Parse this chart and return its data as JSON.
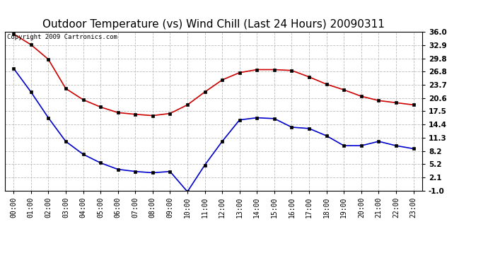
{
  "title": "Outdoor Temperature (vs) Wind Chill (Last 24 Hours) 20090311",
  "copyright_text": "Copyright 2009 Cartronics.com",
  "hours": [
    "00:00",
    "01:00",
    "02:00",
    "03:00",
    "04:00",
    "05:00",
    "06:00",
    "07:00",
    "08:00",
    "09:00",
    "10:00",
    "11:00",
    "12:00",
    "13:00",
    "14:00",
    "15:00",
    "16:00",
    "17:00",
    "18:00",
    "19:00",
    "20:00",
    "21:00",
    "22:00",
    "23:00"
  ],
  "temp": [
    35.5,
    33.0,
    29.6,
    22.8,
    20.2,
    18.5,
    17.2,
    16.8,
    16.5,
    17.0,
    19.0,
    22.0,
    24.8,
    26.5,
    27.2,
    27.2,
    27.0,
    25.5,
    23.8,
    22.5,
    21.0,
    20.0,
    19.5,
    19.0
  ],
  "wind_chill": [
    27.5,
    22.0,
    16.0,
    10.5,
    7.5,
    5.5,
    4.0,
    3.5,
    3.2,
    3.5,
    -1.2,
    5.0,
    10.5,
    15.5,
    16.0,
    15.8,
    13.8,
    13.5,
    11.8,
    9.5,
    9.5,
    10.5,
    9.5,
    8.8
  ],
  "temp_color": "#cc0000",
  "wind_chill_color": "#0000cc",
  "bg_color": "#ffffff",
  "plot_bg_color": "#ffffff",
  "grid_color": "#bbbbbb",
  "yticks": [
    36.0,
    32.9,
    29.8,
    26.8,
    23.7,
    20.6,
    17.5,
    14.4,
    11.3,
    8.2,
    5.2,
    2.1,
    -1.0
  ],
  "ylim": [
    -1.0,
    36.0
  ],
  "title_fontsize": 11,
  "marker": "s",
  "marker_size": 3,
  "linewidth": 1.2
}
